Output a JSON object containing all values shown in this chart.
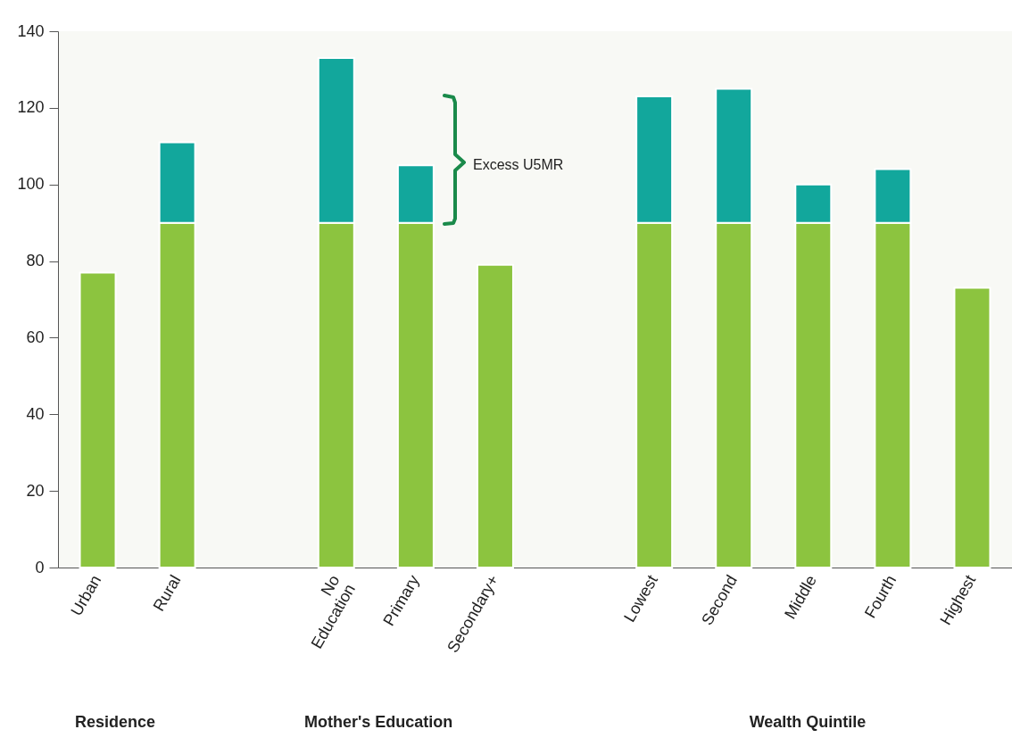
{
  "chart_data": {
    "type": "bar",
    "stacked": true,
    "categories": [
      "Urban",
      "Rural",
      null,
      "No Education",
      "Primary",
      "Secondary+",
      null,
      "Lowest",
      "Second",
      "Middle",
      "Fourth",
      "Highest"
    ],
    "series": [
      {
        "color": "#8cc43f",
        "values": [
          77,
          90,
          null,
          90,
          90,
          79,
          null,
          90,
          90,
          90,
          90,
          73
        ]
      },
      {
        "color": "#12a79c",
        "values": [
          null,
          21,
          null,
          43,
          15,
          null,
          null,
          33,
          35,
          10,
          14,
          null
        ]
      }
    ],
    "ylim": [
      0,
      140
    ],
    "yticks": [
      0,
      20,
      40,
      60,
      80,
      100,
      120,
      140
    ],
    "grid": false,
    "legend": false,
    "annotations": [
      "Excess U5MR",
      "Residence",
      "Mother's Education",
      "Wealth Quintile"
    ]
  }
}
